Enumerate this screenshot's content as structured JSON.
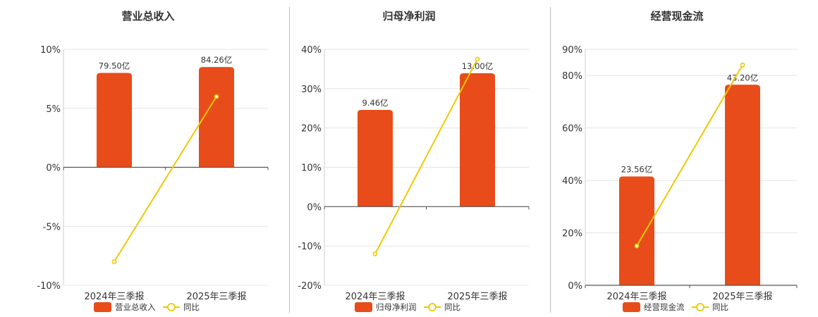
{
  "colors": {
    "bar": "#e84c1a",
    "line": "#f0c800",
    "grid": "#e4e4e4",
    "axis": "#555555"
  },
  "chart_data": [
    {
      "type": "bar",
      "title": "营业总收入",
      "categories": [
        "2024年三季报",
        "2025年三季报"
      ],
      "ylim": [
        -10,
        10
      ],
      "yticks": [
        10,
        5,
        0,
        -5,
        -10
      ],
      "tick_labels": [
        "10%",
        "5%",
        "0%",
        "-5%",
        "-10%"
      ],
      "series": [
        {
          "name": "营业总收入",
          "kind": "bar",
          "values": [
            8,
            8.5
          ],
          "labels": [
            "79.50亿",
            "84.26亿"
          ]
        },
        {
          "name": "同比",
          "kind": "line",
          "values": [
            -8,
            6
          ]
        }
      ],
      "legend_position": "bottom"
    },
    {
      "type": "bar",
      "title": "归母净利润",
      "categories": [
        "2024年三季报",
        "2025年三季报"
      ],
      "ylim": [
        -20,
        40
      ],
      "yticks": [
        40,
        30,
        20,
        10,
        0,
        -10,
        -20
      ],
      "tick_labels": [
        "40%",
        "30%",
        "20%",
        "10%",
        "0%",
        "-10%",
        "-20%"
      ],
      "series": [
        {
          "name": "归母净利润",
          "kind": "bar",
          "values": [
            24.6,
            33.9
          ],
          "labels": [
            "9.46亿",
            "13.00亿"
          ]
        },
        {
          "name": "同比",
          "kind": "line",
          "values": [
            -12,
            37.5
          ]
        }
      ],
      "legend_position": "bottom"
    },
    {
      "type": "bar",
      "title": "经营现金流",
      "categories": [
        "2024年三季报",
        "2025年三季报"
      ],
      "ylim": [
        0,
        90
      ],
      "yticks": [
        90,
        80,
        60,
        40,
        20,
        0
      ],
      "tick_labels": [
        "90%",
        "80%",
        "60%",
        "40%",
        "20%",
        "0%"
      ],
      "series": [
        {
          "name": "经营现金流",
          "kind": "bar",
          "values": [
            41.5,
            76.5
          ],
          "labels": [
            "23.56亿",
            "43.20亿"
          ]
        },
        {
          "name": "同比",
          "kind": "line",
          "values": [
            15,
            84
          ]
        }
      ],
      "legend_position": "bottom"
    }
  ]
}
